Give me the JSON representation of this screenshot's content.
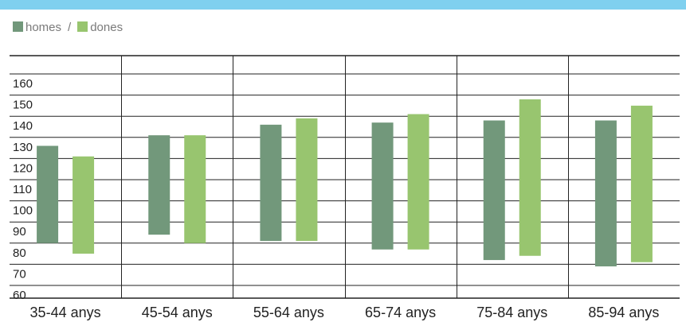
{
  "legend": {
    "men_label": "homes",
    "separator": "/",
    "women_label": "dones"
  },
  "colors": {
    "top_bar": "#7fd0ef",
    "men": "#72987b",
    "women": "#98c56f",
    "grid": "#222222",
    "text": "#222222",
    "legend_text": "#7a7a7a"
  },
  "chart_data": {
    "type": "bar",
    "subtype": "floating-range",
    "categories": [
      "35-44 anys",
      "45-54 anys",
      "55-64 anys",
      "65-74 anys",
      "75-84 anys",
      "85-94 anys"
    ],
    "ylim": [
      55,
      165
    ],
    "yticks": [
      60,
      70,
      80,
      90,
      100,
      110,
      120,
      130,
      140,
      150,
      160
    ],
    "grid": true,
    "legend_position": "top-left",
    "series": [
      {
        "name": "homes",
        "low": [
          80,
          84,
          81,
          77,
          72,
          69
        ],
        "high": [
          126,
          131,
          136,
          137,
          138,
          138
        ]
      },
      {
        "name": "dones",
        "low": [
          75,
          80,
          81,
          77,
          74,
          71
        ],
        "high": [
          121,
          131,
          139,
          141,
          148,
          145
        ]
      }
    ]
  }
}
